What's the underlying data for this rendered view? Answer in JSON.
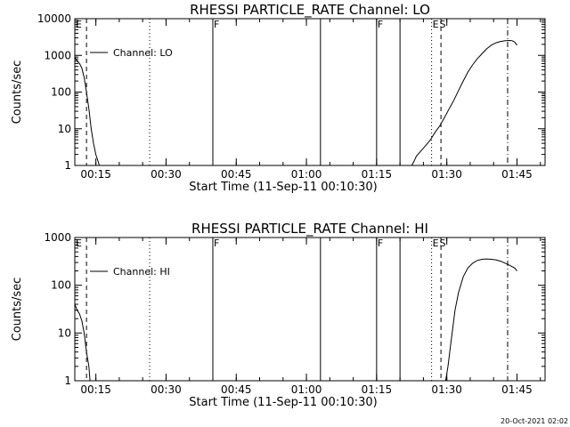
{
  "chart_data": [
    {
      "type": "line",
      "title": "RHESSI PARTICLE_RATE Channel: LO",
      "xlabel": "Start Time (11-Sep-11 00:10:30)",
      "ylabel": "Counts/sec",
      "yscale": "log",
      "ylim": [
        1,
        10000
      ],
      "yticks": [
        "1",
        "10",
        "100",
        "1000",
        "10000"
      ],
      "xlim": [
        "00:10:30",
        "01:51:00"
      ],
      "xticks": [
        "00:15",
        "00:30",
        "00:45",
        "01:00",
        "01:15",
        "01:30",
        "01:45"
      ],
      "legend": {
        "placement": "top-left",
        "entries": [
          "Channel: LO"
        ]
      },
      "grid": false,
      "series": [
        {
          "name": "Channel: LO",
          "segments": [
            [
              [
                "00:10:30",
                900
              ],
              [
                "00:11:00",
                700
              ],
              [
                "00:11:30",
                600
              ],
              [
                "00:12:00",
                450
              ],
              [
                "00:12:30",
                250
              ],
              [
                "00:13:00",
                100
              ],
              [
                "00:13:30",
                35
              ],
              [
                "00:14:00",
                10
              ],
              [
                "00:14:30",
                4
              ],
              [
                "00:15:00",
                2
              ],
              [
                "00:15:45",
                1
              ]
            ],
            [
              [
                "01:22:30",
                1
              ],
              [
                "01:23:00",
                1.3
              ],
              [
                "01:23:30",
                1.8
              ],
              [
                "01:24:30",
                2.5
              ],
              [
                "01:25:30",
                3.5
              ],
              [
                "01:26:30",
                5
              ],
              [
                "01:27:30",
                8
              ],
              [
                "01:28:30",
                12
              ],
              [
                "01:29:30",
                20
              ],
              [
                "01:30:30",
                35
              ],
              [
                "01:31:30",
                60
              ],
              [
                "01:32:30",
                110
              ],
              [
                "01:33:30",
                200
              ],
              [
                "01:34:30",
                350
              ],
              [
                "01:35:30",
                550
              ],
              [
                "01:36:30",
                800
              ],
              [
                "01:37:30",
                1100
              ],
              [
                "01:38:30",
                1500
              ],
              [
                "01:39:30",
                1900
              ],
              [
                "01:40:30",
                2200
              ],
              [
                "01:41:30",
                2400
              ],
              [
                "01:42:30",
                2500
              ],
              [
                "01:43:30",
                2550
              ],
              [
                "01:44:00",
                2500
              ],
              [
                "01:44:30",
                2300
              ],
              [
                "01:45:00",
                1900
              ]
            ]
          ]
        }
      ],
      "vlines": [
        {
          "t": "00:13:00",
          "style": "dashed"
        },
        {
          "t": "00:26:30",
          "style": "dotted"
        },
        {
          "t": "00:40:00",
          "style": "solid"
        },
        {
          "t": "01:03:00",
          "style": "solid"
        },
        {
          "t": "01:15:00",
          "style": "solid"
        },
        {
          "t": "01:20:00",
          "style": "solid"
        },
        {
          "t": "01:26:45",
          "style": "dotted"
        },
        {
          "t": "01:28:45",
          "style": "dashed"
        },
        {
          "t": "01:43:00",
          "style": "dashdot"
        }
      ],
      "flags": [
        {
          "t": "00:10:30",
          "label": "E"
        },
        {
          "t": "00:40:00",
          "label": "F"
        },
        {
          "t": "01:15:00",
          "label": "F"
        },
        {
          "t": "01:26:45",
          "label": "E"
        },
        {
          "t": "01:28:15",
          "label": "S"
        }
      ]
    },
    {
      "type": "line",
      "title": "RHESSI PARTICLE_RATE Channel: HI",
      "xlabel": "Start Time (11-Sep-11 00:10:30)",
      "ylabel": "Counts/sec",
      "yscale": "log",
      "ylim": [
        1,
        1000
      ],
      "yticks": [
        "1",
        "10",
        "100",
        "1000"
      ],
      "xlim": [
        "00:10:30",
        "01:51:00"
      ],
      "xticks": [
        "00:15",
        "00:30",
        "00:45",
        "01:00",
        "01:15",
        "01:30",
        "01:45"
      ],
      "legend": {
        "placement": "top-left",
        "entries": [
          "Channel: HI"
        ]
      },
      "grid": false,
      "series": [
        {
          "name": "Channel: HI",
          "segments": [
            [
              [
                "00:10:30",
                40
              ],
              [
                "00:11:00",
                30
              ],
              [
                "00:11:30",
                25
              ],
              [
                "00:12:00",
                18
              ],
              [
                "00:12:30",
                10
              ],
              [
                "00:13:00",
                4
              ],
              [
                "00:13:30",
                2
              ],
              [
                "00:13:45",
                1
              ]
            ],
            [
              [
                "01:29:45",
                1
              ],
              [
                "01:30:15",
                2
              ],
              [
                "01:30:45",
                5
              ],
              [
                "01:31:15",
                12
              ],
              [
                "01:31:45",
                30
              ],
              [
                "01:32:30",
                70
              ],
              [
                "01:33:30",
                150
              ],
              [
                "01:34:30",
                230
              ],
              [
                "01:35:30",
                290
              ],
              [
                "01:36:30",
                330
              ],
              [
                "01:37:30",
                350
              ],
              [
                "01:38:30",
                355
              ],
              [
                "01:39:30",
                350
              ],
              [
                "01:40:30",
                340
              ],
              [
                "01:41:30",
                320
              ],
              [
                "01:42:30",
                290
              ],
              [
                "01:43:30",
                260
              ],
              [
                "01:44:30",
                230
              ],
              [
                "01:45:00",
                200
              ]
            ]
          ]
        }
      ],
      "vlines": [
        {
          "t": "00:13:00",
          "style": "dashed"
        },
        {
          "t": "00:26:30",
          "style": "dotted"
        },
        {
          "t": "00:40:00",
          "style": "solid"
        },
        {
          "t": "01:03:00",
          "style": "solid"
        },
        {
          "t": "01:15:00",
          "style": "solid"
        },
        {
          "t": "01:20:00",
          "style": "solid"
        },
        {
          "t": "01:26:45",
          "style": "dotted"
        },
        {
          "t": "01:28:45",
          "style": "dashed"
        },
        {
          "t": "01:43:00",
          "style": "dashdot"
        }
      ],
      "flags": [
        {
          "t": "00:10:30",
          "label": "E"
        },
        {
          "t": "00:40:00",
          "label": "F"
        },
        {
          "t": "01:15:00",
          "label": "F"
        },
        {
          "t": "01:26:45",
          "label": "E"
        },
        {
          "t": "01:28:15",
          "label": "S"
        }
      ]
    }
  ],
  "footer": {
    "timestamp": "20-Oct-2021 02:02"
  }
}
